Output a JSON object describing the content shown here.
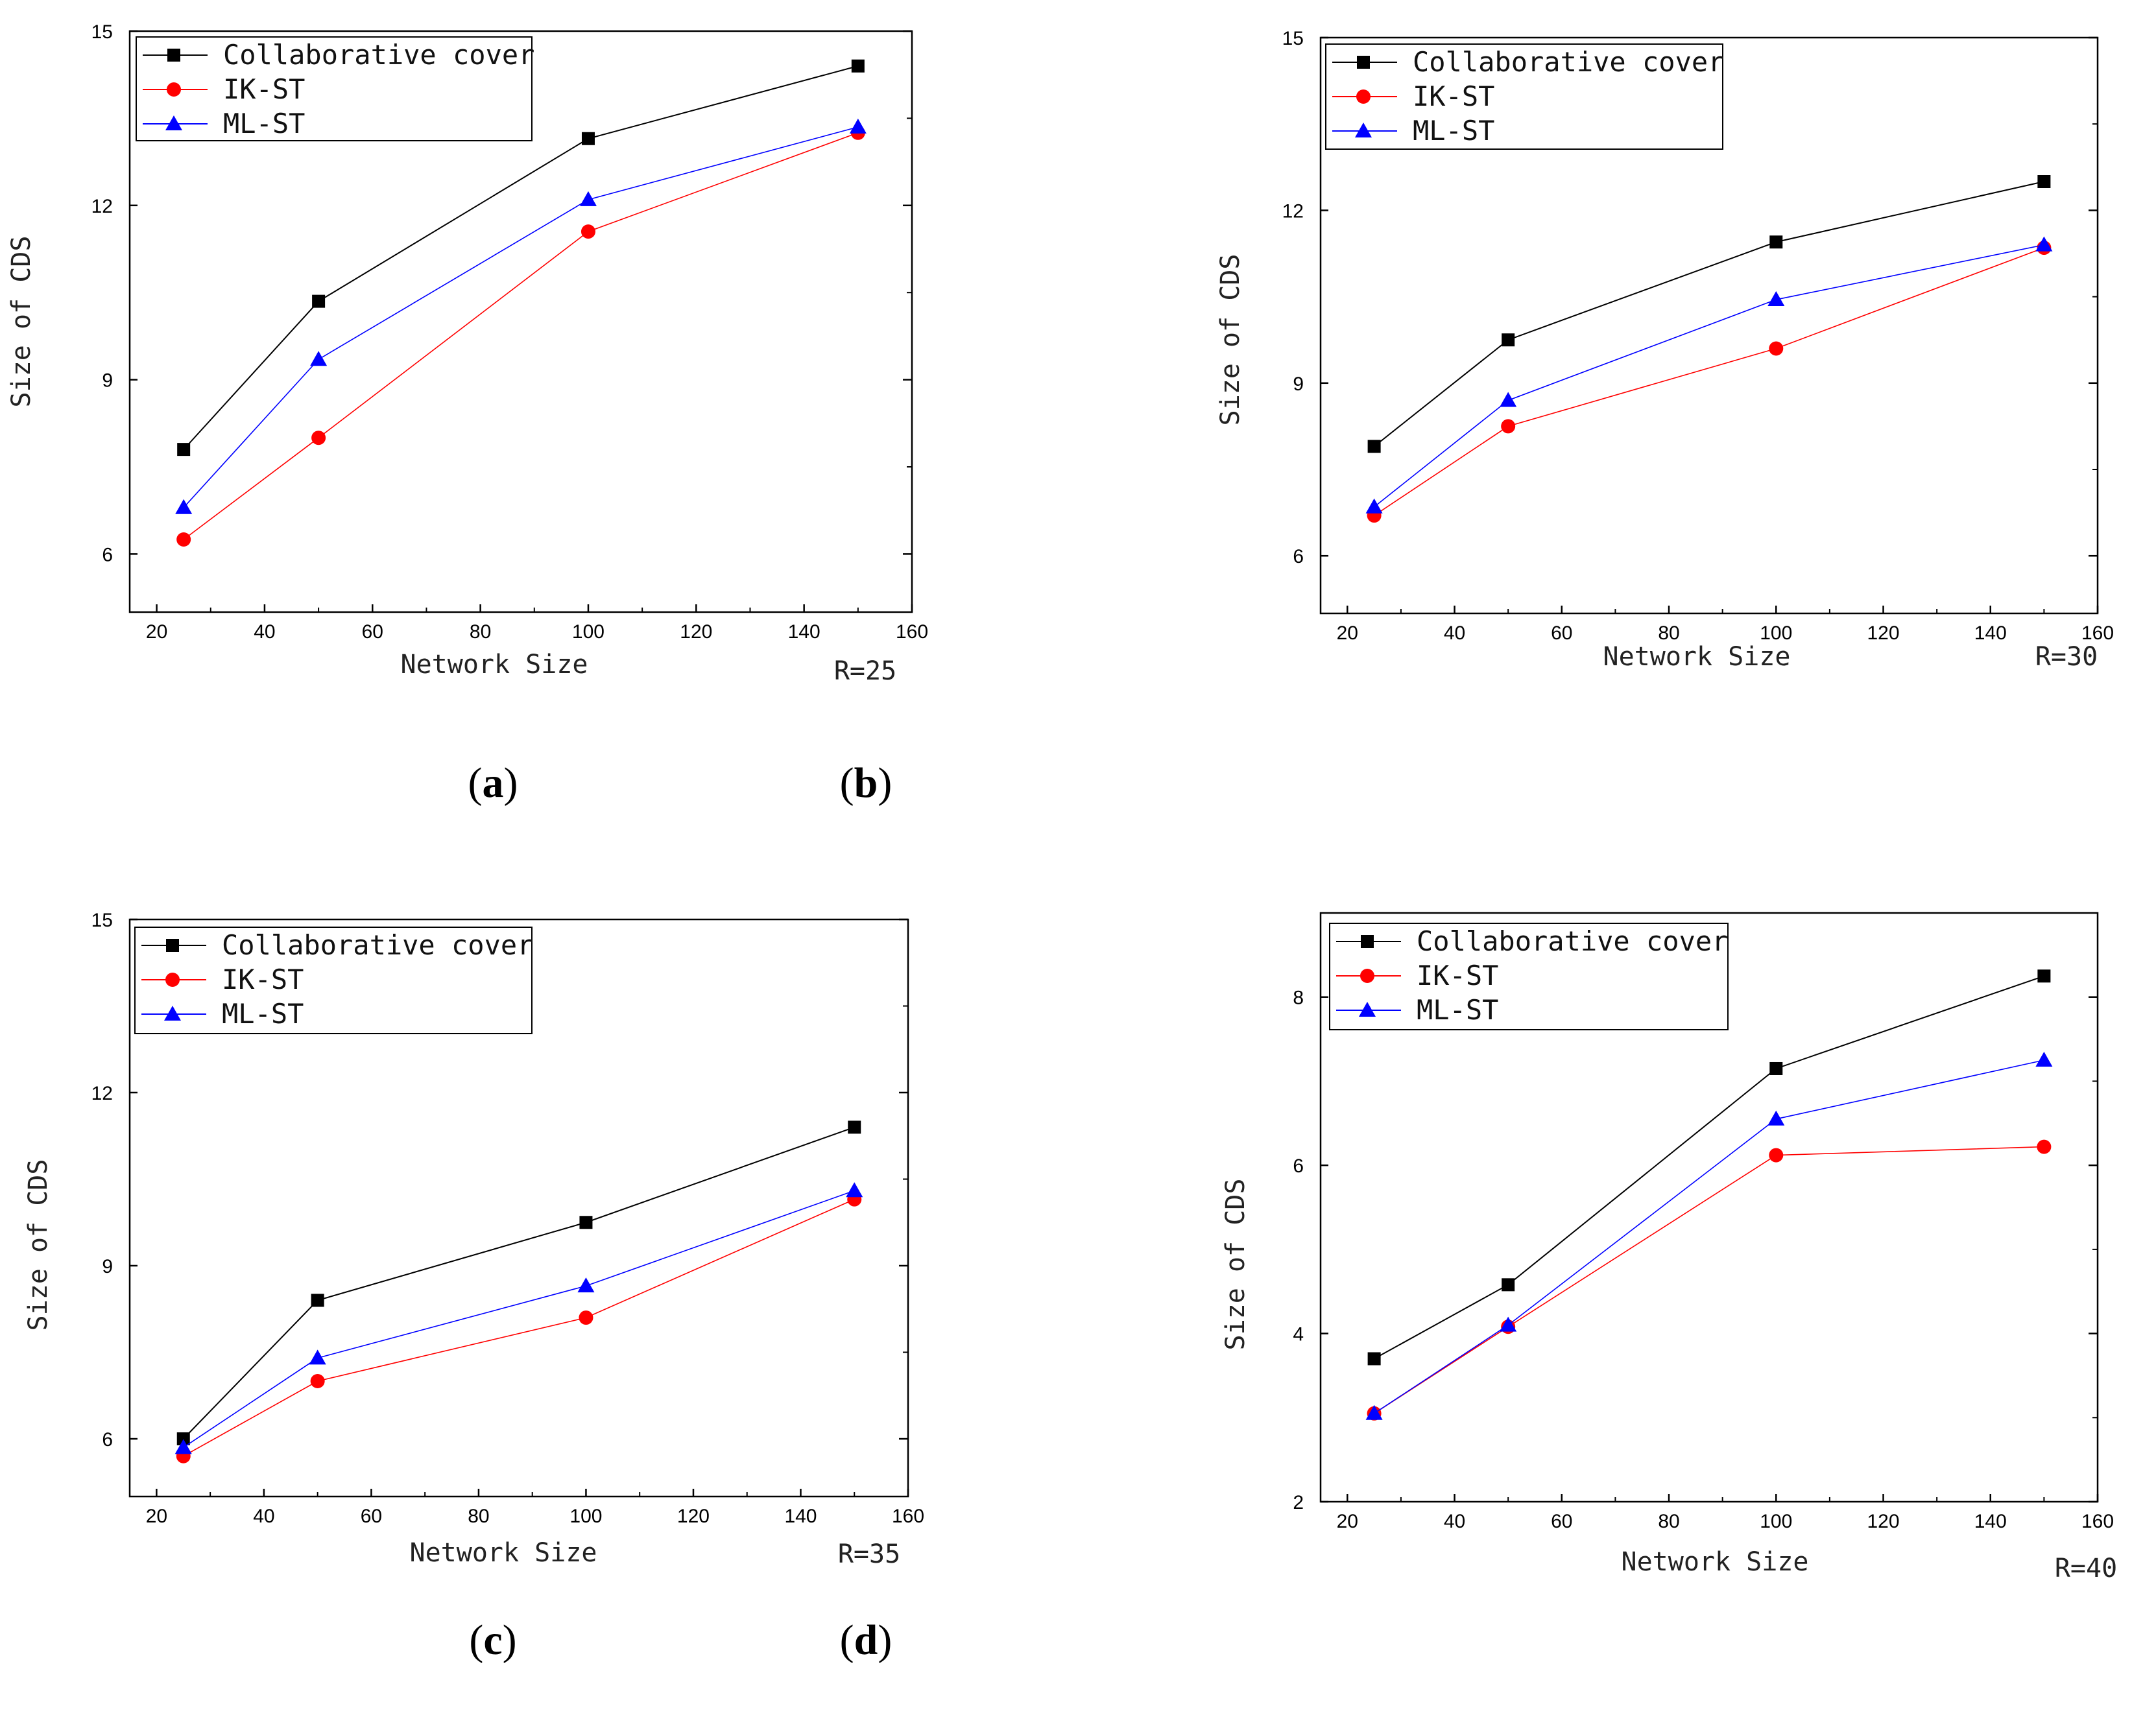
{
  "legend_labels": [
    "Collaborative cover",
    "IK-ST",
    "ML-ST"
  ],
  "colors": {
    "collab": "#000000",
    "ik": "#ff0000",
    "ml": "#0000ff"
  },
  "chart_data": [
    {
      "type": "line",
      "caption_label": "a",
      "note": "R=25",
      "xlabel": "Network Size",
      "ylabel": "Size of CDS",
      "xlim": [
        15,
        160
      ],
      "ylim": [
        5,
        15
      ],
      "xticks": [
        20,
        40,
        60,
        80,
        100,
        120,
        140,
        160
      ],
      "yticks": [
        6,
        9,
        12,
        15
      ],
      "x": [
        25,
        50,
        100,
        150
      ],
      "series": [
        {
          "name": "Collaborative cover",
          "values": [
            7.8,
            10.35,
            13.15,
            14.4
          ]
        },
        {
          "name": "IK-ST",
          "values": [
            6.25,
            8.0,
            11.55,
            13.25
          ]
        },
        {
          "name": "ML-ST",
          "values": [
            6.8,
            9.35,
            12.1,
            13.35
          ]
        }
      ]
    },
    {
      "type": "line",
      "caption_label": "b",
      "note": "R=30",
      "xlabel": "Network Size",
      "ylabel": "Size of CDS",
      "xlim": [
        15,
        160
      ],
      "ylim": [
        5,
        15
      ],
      "xticks": [
        20,
        40,
        60,
        80,
        100,
        120,
        140,
        160
      ],
      "yticks": [
        6,
        9,
        12,
        15
      ],
      "x": [
        25,
        50,
        100,
        150
      ],
      "series": [
        {
          "name": "Collaborative cover",
          "values": [
            7.9,
            9.75,
            11.45,
            12.5
          ]
        },
        {
          "name": "IK-ST",
          "values": [
            6.7,
            8.25,
            9.6,
            11.35
          ]
        },
        {
          "name": "ML-ST",
          "values": [
            6.85,
            8.7,
            10.45,
            11.4
          ]
        }
      ]
    },
    {
      "type": "line",
      "caption_label": "c",
      "note": "R=35",
      "xlabel": "Network Size",
      "ylabel": "Size of CDS",
      "xlim": [
        15,
        160
      ],
      "ylim": [
        5,
        15
      ],
      "xticks": [
        20,
        40,
        60,
        80,
        100,
        120,
        140,
        160
      ],
      "yticks": [
        6,
        9,
        12,
        15
      ],
      "x": [
        25,
        50,
        100,
        150
      ],
      "series": [
        {
          "name": "Collaborative cover",
          "values": [
            6.0,
            8.4,
            9.75,
            11.4
          ]
        },
        {
          "name": "IK-ST",
          "values": [
            5.7,
            7.0,
            8.1,
            10.15
          ]
        },
        {
          "name": "ML-ST",
          "values": [
            5.85,
            7.4,
            8.65,
            10.3
          ]
        }
      ]
    },
    {
      "type": "line",
      "caption_label": "d",
      "note": "R=40",
      "xlabel": "Network Size",
      "ylabel": "Size of CDS",
      "xlim": [
        15,
        160
      ],
      "ylim": [
        2,
        9
      ],
      "xticks": [
        20,
        40,
        60,
        80,
        100,
        120,
        140,
        160
      ],
      "yticks": [
        2,
        4,
        6,
        8
      ],
      "x": [
        25,
        50,
        100,
        150
      ],
      "series": [
        {
          "name": "Collaborative cover",
          "values": [
            3.7,
            4.58,
            7.15,
            8.25
          ]
        },
        {
          "name": "IK-ST",
          "values": [
            3.05,
            4.08,
            6.12,
            6.22
          ]
        },
        {
          "name": "ML-ST",
          "values": [
            3.05,
            4.1,
            6.55,
            7.25
          ]
        }
      ]
    }
  ]
}
